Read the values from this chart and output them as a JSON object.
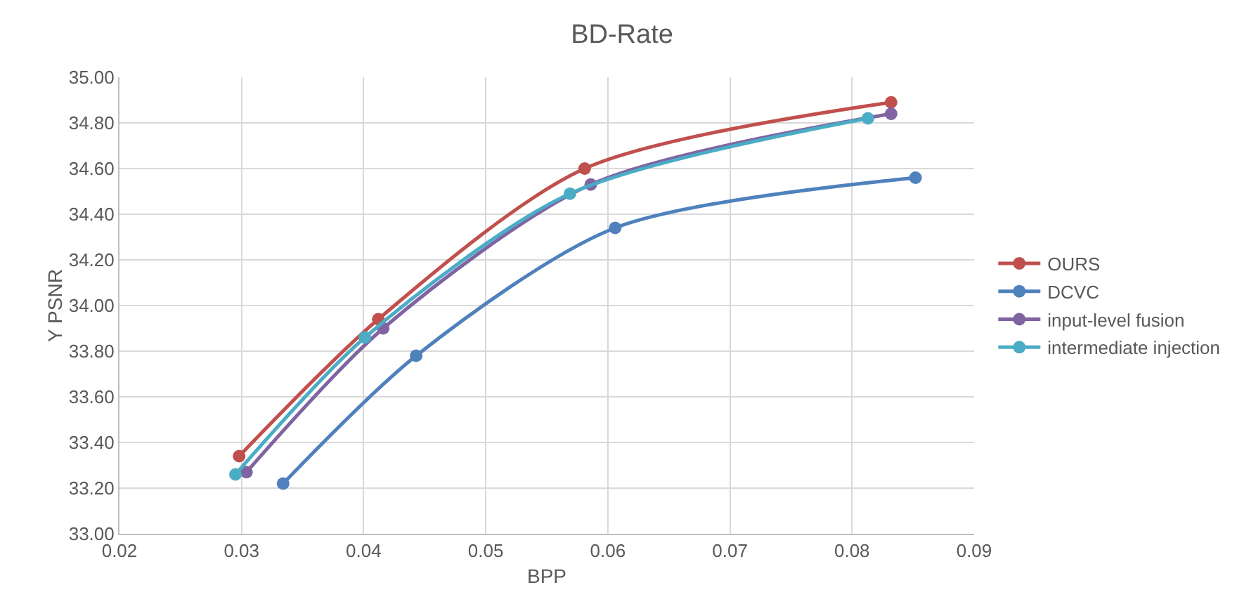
{
  "chart_data": {
    "type": "line",
    "title": "BD-Rate",
    "xlabel": "BPP",
    "ylabel": "Y PSNR",
    "series": [
      {
        "name": "OURS",
        "color": "#c0504d",
        "x": [
          0.0298,
          0.0412,
          0.0581,
          0.0832
        ],
        "values": [
          33.34,
          33.94,
          34.6,
          34.89
        ]
      },
      {
        "name": "DCVC",
        "color": "#4f81bd",
        "x": [
          0.0334,
          0.0443,
          0.0606,
          0.0852
        ],
        "values": [
          33.22,
          33.78,
          34.34,
          34.56
        ]
      },
      {
        "name": "input-level fusion",
        "color": "#8064a2",
        "x": [
          0.0304,
          0.0416,
          0.0586,
          0.0832
        ],
        "values": [
          33.27,
          33.9,
          34.53,
          34.84
        ]
      },
      {
        "name": "intermediate injection",
        "color": "#4bacc6",
        "x": [
          0.0295,
          0.0401,
          0.0569,
          0.0813
        ],
        "values": [
          33.26,
          33.86,
          34.49,
          34.82
        ]
      }
    ],
    "xlim": [
      0.02,
      0.09
    ],
    "xticks": [
      0.02,
      0.03,
      0.04,
      0.05,
      0.06,
      0.07,
      0.08,
      0.09
    ],
    "ylim": [
      33,
      35
    ],
    "yticks": [
      {
        "value": 33,
        "label": "33.00"
      },
      {
        "value": 33.2,
        "label": "33.20"
      },
      {
        "value": 33.4,
        "label": "33.40"
      },
      {
        "value": 33.6,
        "label": "33.60"
      },
      {
        "value": 33.8,
        "label": "33.80"
      },
      {
        "value": 34,
        "label": "34.00"
      },
      {
        "value": 34.2,
        "label": "34.20"
      },
      {
        "value": 34.4,
        "label": "34.40"
      },
      {
        "value": 34.6,
        "label": "34.60"
      },
      {
        "value": 34.8,
        "label": "34.80"
      },
      {
        "value": 35,
        "label": "35.00"
      }
    ],
    "grid": true,
    "legend": "right",
    "marker": "circle",
    "line_style": "solid"
  }
}
